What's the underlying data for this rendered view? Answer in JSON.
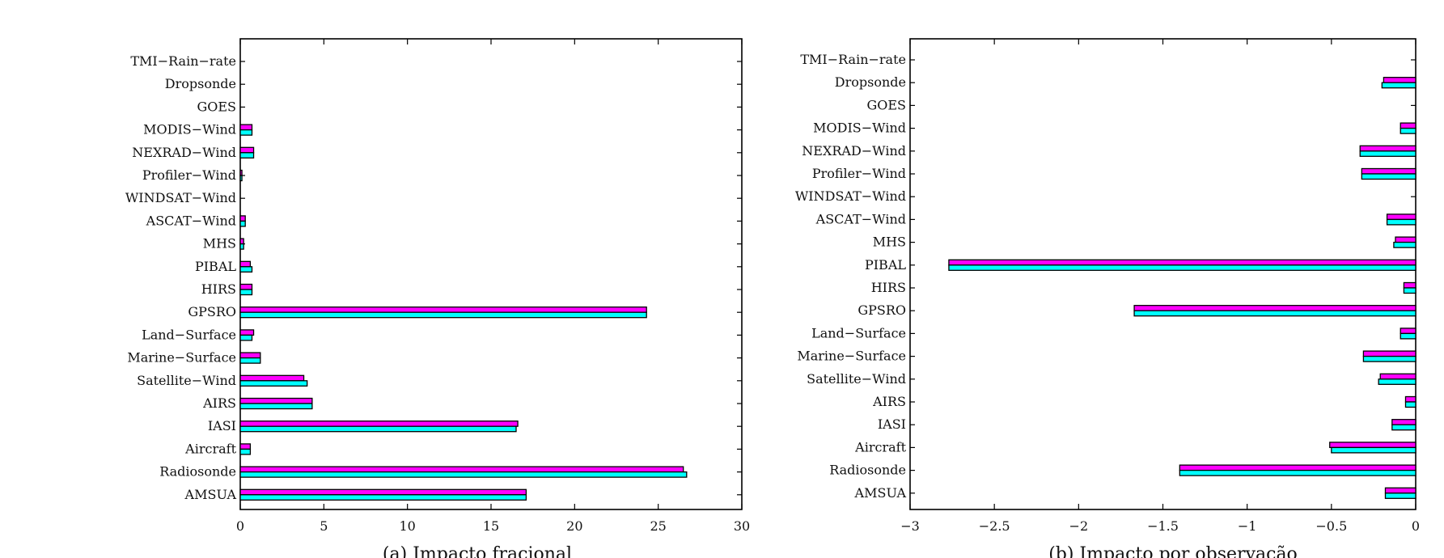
{
  "chart_data": [
    {
      "type": "bar",
      "orientation": "horizontal",
      "caption": "(a) Impacto fracional",
      "categories": [
        "TMI−Rain−rate",
        "Dropsonde",
        "GOES",
        "MODIS−Wind",
        "NEXRAD−Wind",
        "Profiler−Wind",
        "WINDSAT−Wind",
        "ASCAT−Wind",
        "MHS",
        "PIBAL",
        "HIRS",
        "GPSRO",
        "Land−Surface",
        "Marine−Surface",
        "Satellite−Wind",
        "AIRS",
        "IASI",
        "Aircraft",
        "Radiosonde",
        "AMSUA"
      ],
      "xlim": [
        0,
        30
      ],
      "xticks": [
        "0",
        "5",
        "10",
        "15",
        "20",
        "25",
        "30"
      ],
      "xtick_values": [
        0,
        5,
        10,
        15,
        20,
        25,
        30
      ],
      "series": [
        {
          "color": "#ff00ff",
          "values": [
            0,
            0,
            0,
            0.7,
            0.8,
            0.1,
            0,
            0.3,
            0.2,
            0.6,
            0.7,
            24.3,
            0.8,
            1.2,
            3.8,
            4.3,
            16.6,
            0.6,
            26.5,
            17.1
          ]
        },
        {
          "color": "#00ffff",
          "values": [
            0,
            0,
            0,
            0.7,
            0.8,
            0.1,
            0,
            0.3,
            0.2,
            0.7,
            0.7,
            24.3,
            0.7,
            1.2,
            4.0,
            4.3,
            16.5,
            0.6,
            26.7,
            17.1
          ]
        }
      ]
    },
    {
      "type": "bar",
      "orientation": "horizontal",
      "caption": "(b) Impacto por observação",
      "categories": [
        "TMI−Rain−rate",
        "Dropsonde",
        "GOES",
        "MODIS−Wind",
        "NEXRAD−Wind",
        "Profiler−Wind",
        "WINDSAT−Wind",
        "ASCAT−Wind",
        "MHS",
        "PIBAL",
        "HIRS",
        "GPSRO",
        "Land−Surface",
        "Marine−Surface",
        "Satellite−Wind",
        "AIRS",
        "IASI",
        "Aircraft",
        "Radiosonde",
        "AMSUA"
      ],
      "xlim": [
        -3,
        0
      ],
      "xticks": [
        "−3",
        "−2.5",
        "−2",
        "−1.5",
        "−1",
        "−0.5",
        "0"
      ],
      "xtick_values": [
        -3,
        -2.5,
        -2,
        -1.5,
        -1,
        -0.5,
        0
      ],
      "series": [
        {
          "color": "#ff00ff",
          "values": [
            0,
            -0.19,
            0,
            -0.09,
            -0.33,
            -0.32,
            0,
            -0.17,
            -0.12,
            -2.77,
            -0.07,
            -1.67,
            -0.09,
            -0.31,
            -0.21,
            -0.06,
            -0.14,
            -0.51,
            -1.4,
            -0.18
          ]
        },
        {
          "color": "#00ffff",
          "values": [
            0,
            -0.2,
            0,
            -0.09,
            -0.33,
            -0.32,
            0,
            -0.17,
            -0.13,
            -2.77,
            -0.07,
            -1.67,
            -0.09,
            -0.31,
            -0.22,
            -0.06,
            -0.14,
            -0.5,
            -1.4,
            -0.18
          ]
        }
      ]
    }
  ]
}
